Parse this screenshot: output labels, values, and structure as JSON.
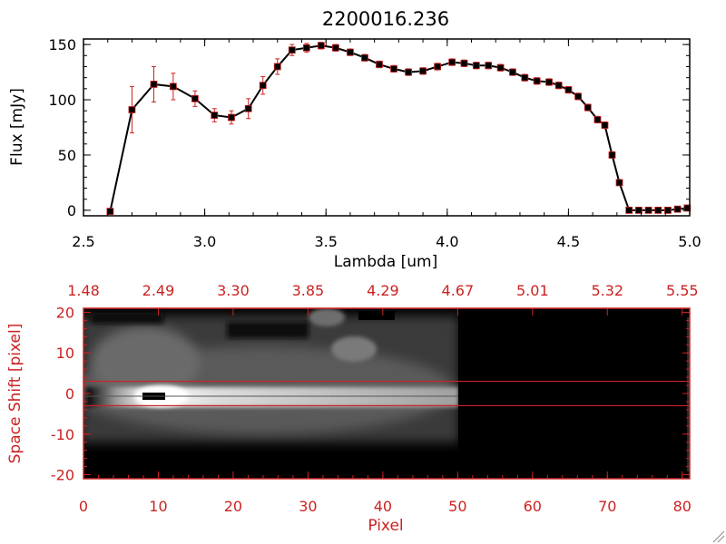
{
  "chart_data": [
    {
      "type": "line",
      "title": "2200016.236",
      "xlabel": "Lambda [um]",
      "ylabel": "Flux [mJy]",
      "xlim": [
        2.5,
        5.0
      ],
      "ylim": [
        -5,
        155
      ],
      "xticks": [
        "2.5",
        "3.0",
        "3.5",
        "4.0",
        "4.5",
        "5.0"
      ],
      "yticks": [
        "0",
        "50",
        "100",
        "150"
      ],
      "colors": {
        "line": "#000000",
        "marker": "#000000",
        "errorbar": "#cc2222",
        "marker_edge": "#cc2222"
      },
      "series": [
        {
          "x": [
            2.61,
            2.7,
            2.79,
            2.87,
            2.96,
            3.04,
            3.11,
            3.18,
            3.24,
            3.3,
            3.36,
            3.42,
            3.48,
            3.54,
            3.6,
            3.66,
            3.72,
            3.78,
            3.84,
            3.9,
            3.96,
            4.02,
            4.07,
            4.12,
            4.17,
            4.22,
            4.27,
            4.32,
            4.37,
            4.42,
            4.46,
            4.5,
            4.54,
            4.58,
            4.62,
            4.65,
            4.68,
            4.71,
            4.75,
            4.79,
            4.83,
            4.87,
            4.91,
            4.95,
            4.99
          ],
          "y": [
            -1,
            91,
            114,
            112,
            101,
            86,
            84,
            92,
            113,
            130,
            145,
            147,
            149,
            147,
            143,
            138,
            132,
            128,
            125,
            126,
            130,
            134,
            133,
            131,
            131,
            129,
            125,
            120,
            117,
            116,
            113,
            109,
            103,
            93,
            82,
            77,
            50,
            25,
            0,
            0,
            0,
            0,
            0,
            1,
            2
          ],
          "yerr": [
            0,
            21,
            16,
            12,
            7,
            6,
            6,
            9,
            8,
            7,
            5,
            4,
            3,
            3,
            3,
            3,
            3,
            3,
            3,
            3,
            3,
            3,
            3,
            3,
            3,
            3,
            3,
            3,
            3,
            3,
            3,
            3,
            3,
            3,
            3,
            3,
            3,
            2,
            2,
            1,
            1,
            1,
            1,
            1,
            1
          ]
        }
      ]
    },
    {
      "type": "heatmap",
      "xlabel": "Pixel",
      "ylabel": "Space Shift [pixel]",
      "xlim": [
        0,
        81
      ],
      "ylim": [
        -21,
        21
      ],
      "xticks": [
        "0",
        "10",
        "20",
        "30",
        "40",
        "50",
        "60",
        "70",
        "80"
      ],
      "yticks": [
        "-20",
        "-10",
        "0",
        "10",
        "20"
      ],
      "top_ticks": [
        "1.48",
        "2.49",
        "3.30",
        "3.85",
        "4.29",
        "4.67",
        "5.01",
        "5.32",
        "5.55"
      ],
      "extraction_window": [
        -3,
        3
      ],
      "colors": {
        "axes": "#cc2222",
        "window": "#cc2222",
        "background": "#000000"
      }
    }
  ]
}
